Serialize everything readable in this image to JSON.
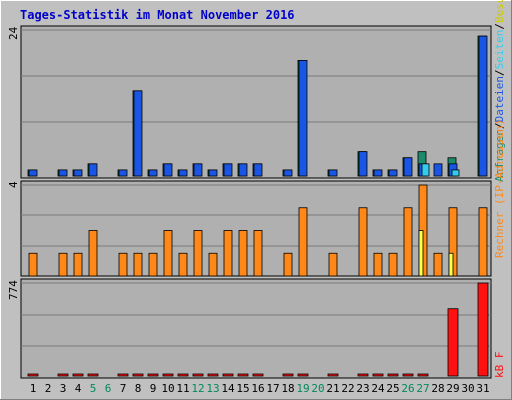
{
  "chart_data": {
    "type": "bar",
    "title": "Tages-Statistik im Monat November 2016",
    "categories": [
      "1",
      "2",
      "3",
      "4",
      "5",
      "6",
      "7",
      "8",
      "9",
      "10",
      "11",
      "12",
      "13",
      "14",
      "15",
      "16",
      "17",
      "18",
      "19",
      "20",
      "21",
      "22",
      "23",
      "24",
      "25",
      "26",
      "27",
      "28",
      "29",
      "30",
      "31"
    ],
    "weekend_days": [
      "5",
      "6",
      "12",
      "13",
      "19",
      "20",
      "26",
      "27"
    ],
    "colors": {
      "background": "#c0c0c0",
      "plot": "#b0b0b0",
      "grid": "#7a7a7a",
      "title": "#0000cc",
      "weekend_label": "#008a5a",
      "visits": "#1a56e6",
      "anfragen": "#1a8a6a",
      "dateien": "#33ccee",
      "seiten": "#1a56e6",
      "rechner": "#ff8818",
      "besuche": "#ffff44",
      "kbf": "#ff1111"
    },
    "panel_top": {
      "ymax_label": "24",
      "ymax": 24,
      "right_label": {
        "anfragen": "Anfragen",
        "sep1": "/",
        "dateien": "Dateien",
        "sep2": "/",
        "seiten": "Seiten",
        "sep3": "/",
        "besuche": "Besuche"
      },
      "series": [
        {
          "key": "anfragen",
          "values": [
            1,
            0,
            1,
            1,
            2,
            0,
            1,
            14,
            1,
            2,
            1,
            2,
            1,
            2,
            2,
            2,
            0,
            1,
            19,
            0,
            1,
            0,
            4,
            1,
            1,
            3,
            4,
            0,
            3,
            0,
            23
          ]
        },
        {
          "key": "dateien",
          "values": [
            0,
            0,
            0,
            0,
            0,
            0,
            0,
            0,
            0,
            0,
            0,
            0,
            0,
            0,
            0,
            0,
            0,
            0,
            0,
            0,
            0,
            0,
            0,
            0,
            0,
            0,
            2,
            0,
            1,
            0,
            0
          ]
        },
        {
          "key": "seiten",
          "values": [
            1,
            0,
            1,
            1,
            2,
            0,
            1,
            14,
            1,
            2,
            1,
            2,
            1,
            2,
            2,
            2,
            0,
            1,
            19,
            0,
            1,
            0,
            4,
            1,
            1,
            3,
            2,
            2,
            2,
            0,
            23
          ]
        }
      ]
    },
    "panel_mid": {
      "ymax_label": "4",
      "ymax": 4,
      "right_label": {
        "rechner": "Rechner",
        "open": " (",
        "ip": "IP-Adressen",
        "close": ")"
      },
      "series": [
        {
          "key": "rechner",
          "values": [
            1,
            0,
            1,
            1,
            2,
            0,
            1,
            1,
            1,
            2,
            1,
            2,
            1,
            2,
            2,
            2,
            0,
            1,
            3,
            0,
            1,
            0,
            3,
            1,
            1,
            3,
            4,
            1,
            3,
            0,
            3
          ]
        },
        {
          "key": "besuche",
          "values": [
            0,
            0,
            0,
            0,
            0,
            0,
            0,
            0,
            0,
            0,
            0,
            0,
            0,
            0,
            0,
            0,
            0,
            0,
            0,
            0,
            0,
            0,
            0,
            0,
            0,
            0,
            2,
            0,
            1,
            0,
            0
          ]
        }
      ]
    },
    "panel_bot": {
      "ymax_label": "774",
      "ymax": 774,
      "right_label": "kB F",
      "series": [
        {
          "key": "kbf",
          "values": [
            6,
            0,
            6,
            6,
            6,
            0,
            6,
            6,
            6,
            6,
            6,
            6,
            6,
            6,
            6,
            6,
            0,
            6,
            6,
            0,
            6,
            0,
            6,
            6,
            6,
            6,
            6,
            0,
            560,
            0,
            774
          ]
        }
      ]
    }
  }
}
